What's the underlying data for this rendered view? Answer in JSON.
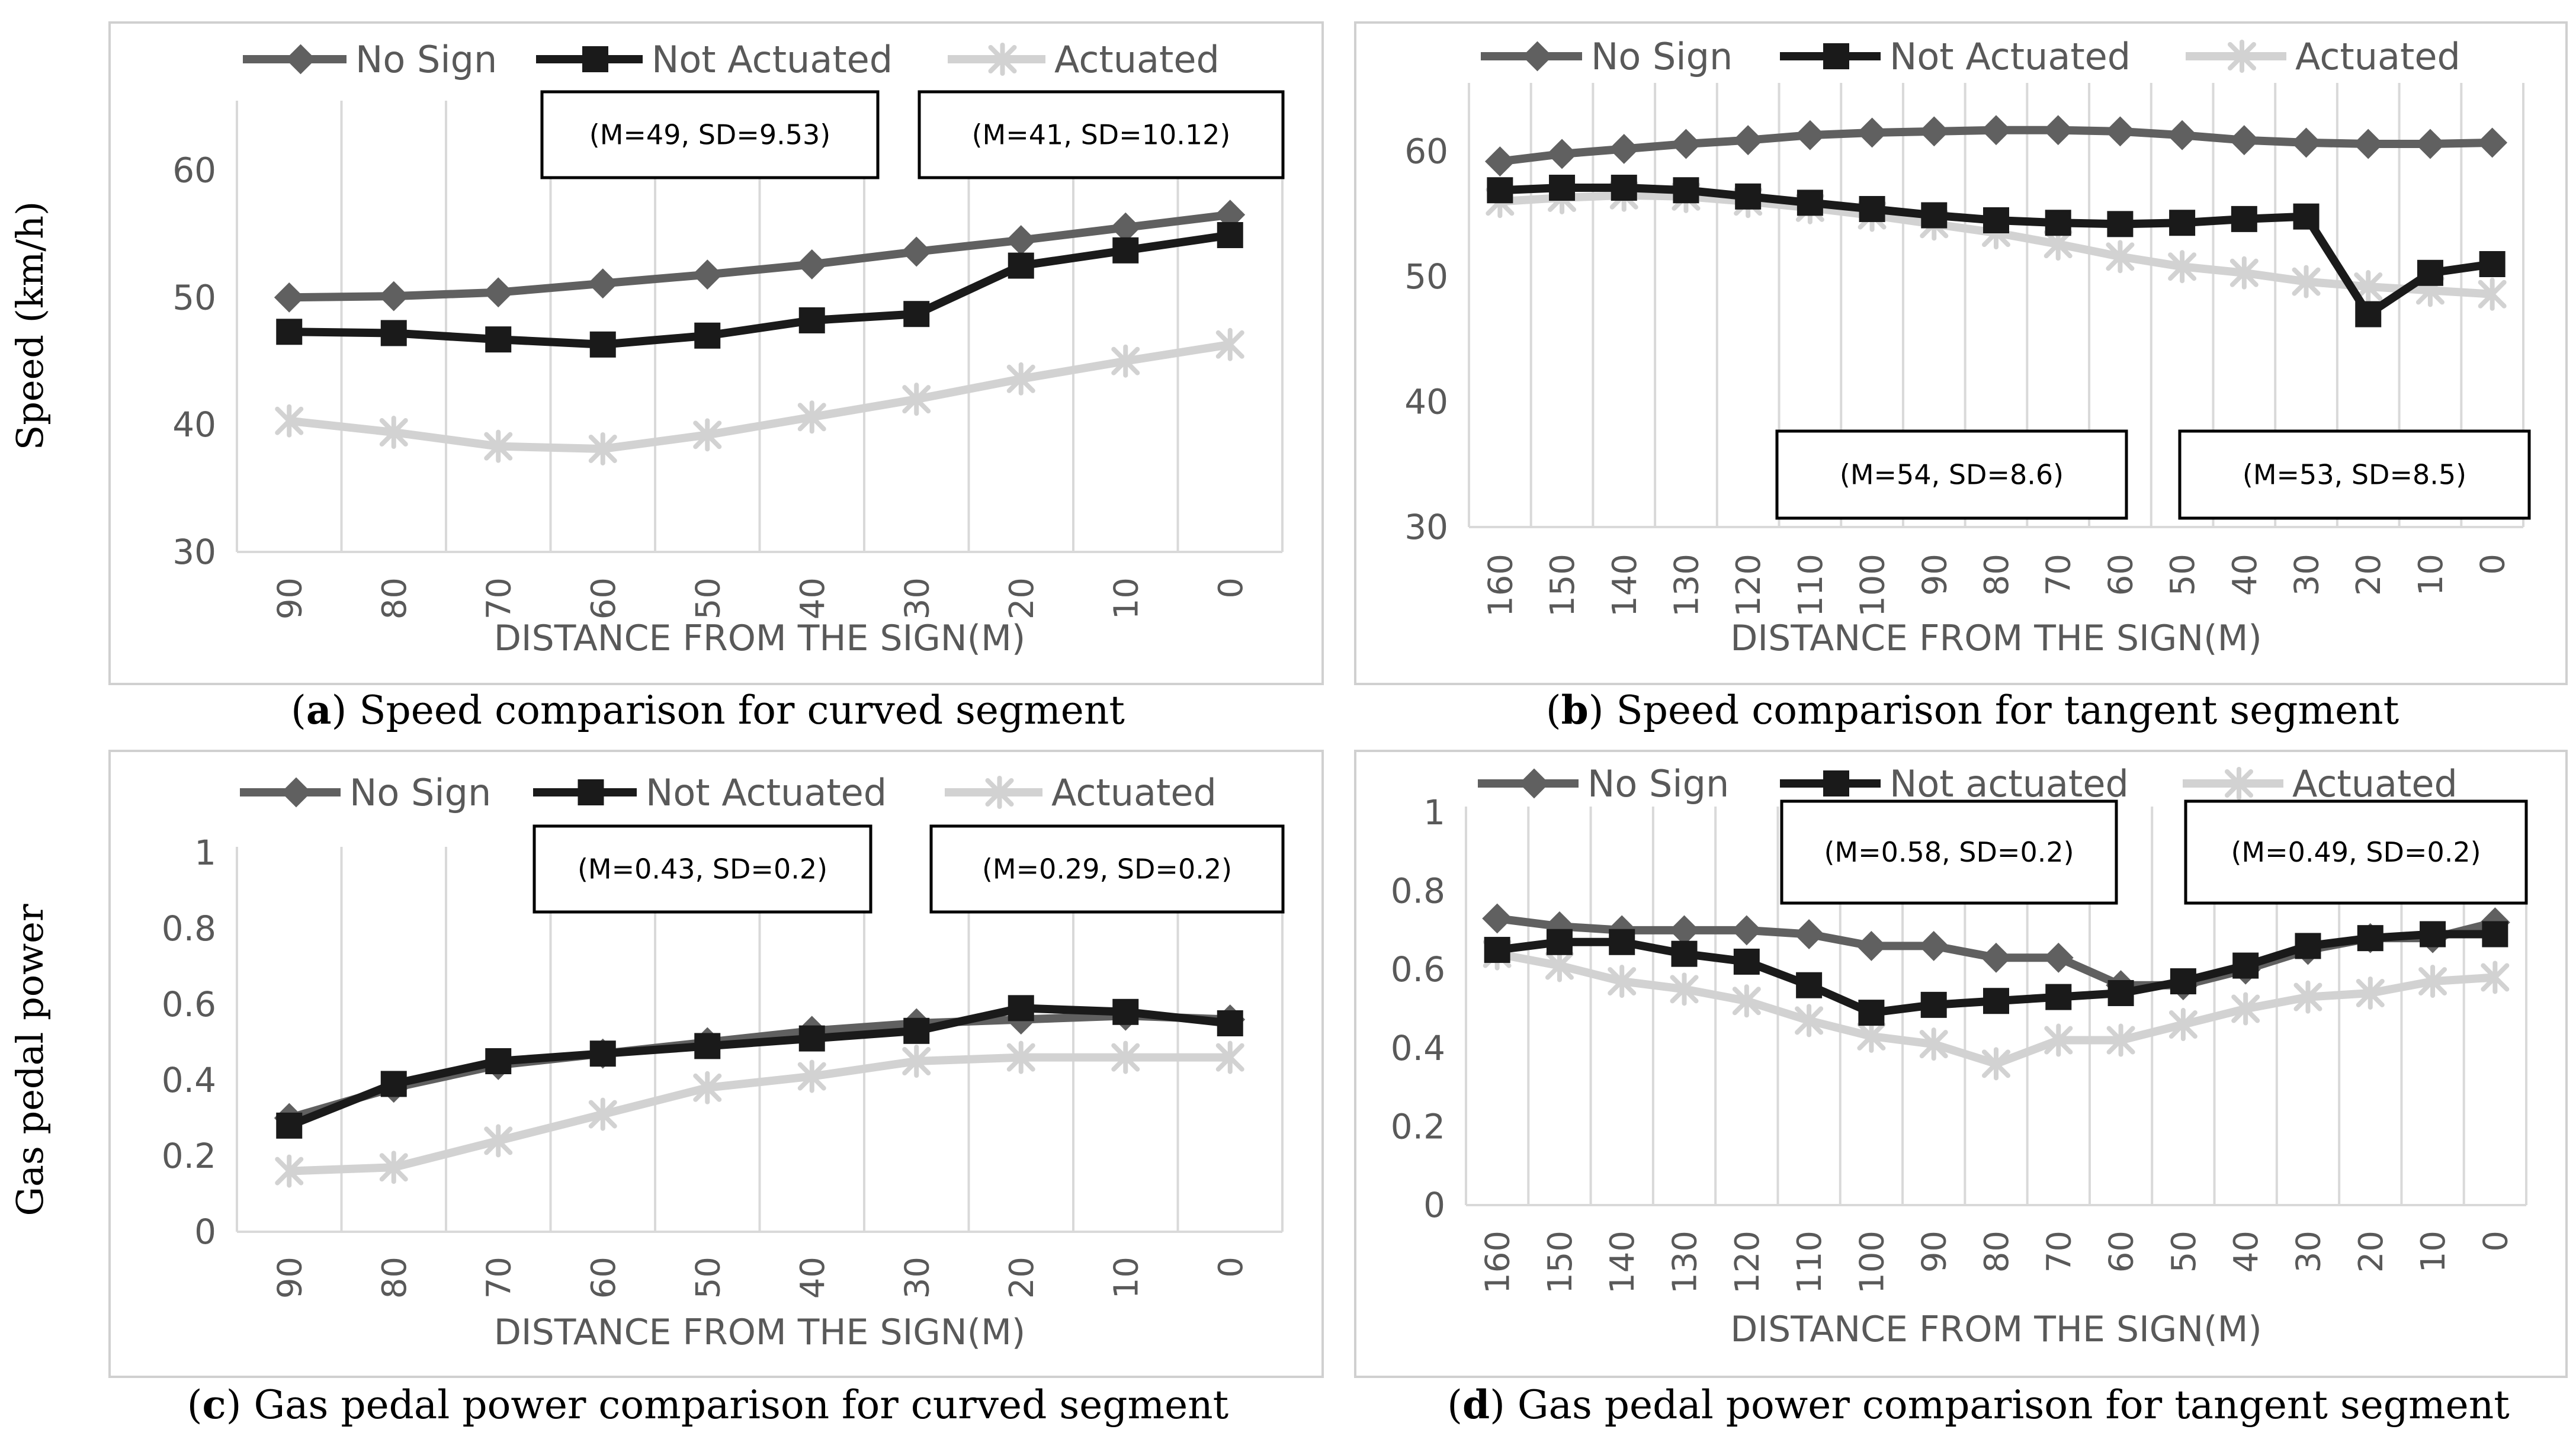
{
  "figure": {
    "y_label_top": "Speed (km/h)",
    "y_label_bottom": "Gas pedal power"
  },
  "chart_data": [
    {
      "id": "a",
      "type": "line",
      "panel_letter": "a",
      "caption": "Speed comparison for curved segment",
      "title": "",
      "xlabel": "DISTANCE FROM THE SIGN(M)",
      "ylabel": "Speed (km/h)",
      "ylim": [
        30,
        65
      ],
      "yticks": [
        "30",
        "40",
        "50",
        "60"
      ],
      "categories": [
        "90",
        "80",
        "70",
        "60",
        "50",
        "40",
        "30",
        "20",
        "10",
        "0"
      ],
      "grid": "vertical",
      "legend": "top",
      "series": [
        {
          "name": "No Sign",
          "color": "#606060",
          "marker": "diamond",
          "values": [
            50.0,
            50.1,
            50.4,
            51.1,
            51.8,
            52.6,
            53.6,
            54.5,
            55.5,
            56.5
          ]
        },
        {
          "name": "Not Actuated",
          "color": "#1a1a1a",
          "marker": "square",
          "values": [
            47.3,
            47.2,
            46.7,
            46.3,
            47.0,
            48.2,
            48.7,
            52.5,
            53.7,
            54.9
          ]
        },
        {
          "name": "Actuated",
          "color": "#d2d2d2",
          "marker": "star",
          "values": [
            40.3,
            39.4,
            38.3,
            38.1,
            39.2,
            40.6,
            42.0,
            43.6,
            45.0,
            46.3
          ]
        }
      ],
      "annotations": [
        "(M=49, SD=9.53)",
        "(M=41, SD=10.12)"
      ]
    },
    {
      "id": "b",
      "type": "line",
      "panel_letter": "b",
      "caption": "Speed comparison for tangent segment",
      "title": "",
      "xlabel": "DISTANCE FROM THE SIGN(M)",
      "ylabel": "Speed (km/h)",
      "ylim": [
        30,
        65
      ],
      "yticks": [
        "30",
        "40",
        "50",
        "60"
      ],
      "categories": [
        "160",
        "150",
        "140",
        "130",
        "120",
        "110",
        "100",
        "90",
        "80",
        "70",
        "60",
        "50",
        "40",
        "30",
        "20",
        "10",
        "0"
      ],
      "grid": "vertical",
      "legend": "top",
      "series": [
        {
          "name": "No Sign",
          "color": "#606060",
          "marker": "diamond",
          "values": [
            59.2,
            59.8,
            60.2,
            60.6,
            60.9,
            61.3,
            61.5,
            61.6,
            61.7,
            61.7,
            61.6,
            61.3,
            60.9,
            60.7,
            60.6,
            60.6,
            60.7
          ]
        },
        {
          "name": "Not Actuated",
          "color": "#1a1a1a",
          "marker": "square",
          "values": [
            56.9,
            57.1,
            57.1,
            56.9,
            56.4,
            55.9,
            55.4,
            54.9,
            54.5,
            54.3,
            54.2,
            54.3,
            54.6,
            54.8,
            47.0,
            50.3,
            51.0
          ]
        },
        {
          "name": "Actuated",
          "color": "#d2d2d2",
          "marker": "star",
          "values": [
            56.0,
            56.3,
            56.5,
            56.4,
            56.0,
            55.5,
            54.9,
            54.2,
            53.5,
            52.6,
            51.6,
            50.8,
            50.3,
            49.6,
            49.2,
            48.9,
            48.6
          ]
        }
      ],
      "annotations": [
        "(M=54, SD=8.6)",
        "(M=53, SD=8.5)"
      ]
    },
    {
      "id": "c",
      "type": "line",
      "panel_letter": "c",
      "caption": "Gas pedal power comparison for curved segment",
      "title": "",
      "xlabel": "DISTANCE FROM THE SIGN(M)",
      "ylabel": "Gas pedal power",
      "ylim": [
        0,
        1
      ],
      "yticks": [
        "0",
        "0.2",
        "0.4",
        "0.6",
        "0.8",
        "1"
      ],
      "categories": [
        "90",
        "80",
        "70",
        "60",
        "50",
        "40",
        "30",
        "20",
        "10",
        "0"
      ],
      "grid": "vertical",
      "legend": "top",
      "series": [
        {
          "name": "No Sign",
          "color": "#606060",
          "marker": "diamond",
          "values": [
            0.3,
            0.38,
            0.44,
            0.47,
            0.5,
            0.53,
            0.55,
            0.56,
            0.57,
            0.56
          ]
        },
        {
          "name": "Not Actuated",
          "color": "#1a1a1a",
          "marker": "square",
          "values": [
            0.28,
            0.39,
            0.45,
            0.47,
            0.49,
            0.51,
            0.53,
            0.59,
            0.58,
            0.55
          ]
        },
        {
          "name": "Actuated",
          "color": "#d2d2d2",
          "marker": "star",
          "values": [
            0.16,
            0.17,
            0.24,
            0.31,
            0.38,
            0.41,
            0.45,
            0.46,
            0.46,
            0.46
          ]
        }
      ],
      "annotations": [
        "(M=0.43, SD=0.2)",
        "(M=0.29, SD=0.2)"
      ]
    },
    {
      "id": "d",
      "type": "line",
      "panel_letter": "d",
      "caption": "Gas pedal power comparison for tangent segment",
      "title": "",
      "xlabel": "DISTANCE FROM THE SIGN(M)",
      "ylabel": "Gas pedal power",
      "ylim": [
        0,
        1
      ],
      "yticks": [
        "0",
        "0.2",
        "0.4",
        "0.6",
        "0.8",
        "1"
      ],
      "categories": [
        "160",
        "150",
        "140",
        "130",
        "120",
        "110",
        "100",
        "90",
        "80",
        "70",
        "60",
        "50",
        "40",
        "30",
        "20",
        "10",
        "0"
      ],
      "grid": "vertical",
      "legend": "top",
      "series": [
        {
          "name": "No Sign",
          "color": "#606060",
          "marker": "diamond",
          "values": [
            0.73,
            0.71,
            0.7,
            0.7,
            0.7,
            0.69,
            0.66,
            0.66,
            0.63,
            0.63,
            0.56,
            0.56,
            0.6,
            0.65,
            0.68,
            0.68,
            0.72
          ]
        },
        {
          "name": "Not actuated",
          "color": "#1a1a1a",
          "marker": "square",
          "values": [
            0.65,
            0.67,
            0.67,
            0.64,
            0.62,
            0.56,
            0.49,
            0.51,
            0.52,
            0.53,
            0.54,
            0.57,
            0.61,
            0.66,
            0.68,
            0.69,
            0.69
          ]
        },
        {
          "name": "Actuated",
          "color": "#d2d2d2",
          "marker": "star",
          "values": [
            0.64,
            0.61,
            0.57,
            0.55,
            0.52,
            0.47,
            0.43,
            0.41,
            0.36,
            0.42,
            0.42,
            0.46,
            0.5,
            0.53,
            0.54,
            0.57,
            0.58
          ]
        }
      ],
      "annotations": [
        "(M=0.58, SD=0.2)",
        "(M=0.49, SD=0.2)"
      ]
    }
  ]
}
